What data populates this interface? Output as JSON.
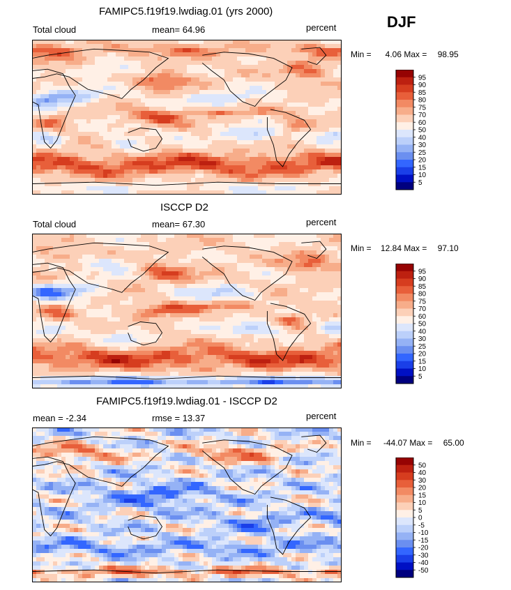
{
  "season": "DJF",
  "colors": {
    "mean_palette": [
      "#00007f",
      "#0010c4",
      "#1a3fe8",
      "#3366ff",
      "#6b8ff0",
      "#95b2f5",
      "#bcd0fa",
      "#dce6fc",
      "#fff0e6",
      "#fcd0b8",
      "#f7ad8a",
      "#f28a63",
      "#e85f3a",
      "#d63d1f",
      "#bd2010",
      "#960303"
    ],
    "diff_palette": [
      "#00007f",
      "#0010c4",
      "#1a3fe8",
      "#3366ff",
      "#6b8ff0",
      "#95b2f5",
      "#bcd0fa",
      "#dce6fc",
      "#fff0e6",
      "#fcd0b8",
      "#f7ad8a",
      "#f28a63",
      "#e85f3a",
      "#d63d1f",
      "#bd2010",
      "#960303"
    ],
    "coast": "#000000"
  },
  "chart_data": [
    {
      "type": "heatmap",
      "title": "FAMIPC5.f19f19.lwdiag.01 (yrs 2000)",
      "left_label": "Total cloud",
      "stat_label": "mean=  64.96",
      "units": "percent",
      "min_label": "Min =",
      "min_value": "4.06",
      "max_label": "Max =",
      "max_value": "98.95",
      "mean": 64.96,
      "min": 4.06,
      "max": 98.95,
      "levels": [
        "5",
        "10",
        "15",
        "20",
        "25",
        "30",
        "40",
        "50",
        "60",
        "70",
        "75",
        "80",
        "85",
        "90",
        "95"
      ]
    },
    {
      "type": "heatmap",
      "title": "ISCCP D2",
      "left_label": "Total cloud",
      "stat_label": "mean=  67.30",
      "units": "percent",
      "min_label": "Min =",
      "min_value": "12.84",
      "max_label": "Max =",
      "max_value": "97.10",
      "mean": 67.3,
      "min": 12.84,
      "max": 97.1,
      "levels": [
        "5",
        "10",
        "15",
        "20",
        "25",
        "30",
        "40",
        "50",
        "60",
        "70",
        "75",
        "80",
        "85",
        "90",
        "95"
      ]
    },
    {
      "type": "heatmap",
      "title": "FAMIPC5.f19f19.lwdiag.01 - ISCCP D2",
      "left_label": "mean =   -2.34",
      "stat_label": "rmse =   13.37",
      "units": "percent",
      "min_label": "Min =",
      "min_value": "-44.07",
      "max_label": "Max =",
      "max_value": "65.00",
      "mean": -2.34,
      "rmse": 13.37,
      "min": -44.07,
      "max": 65.0,
      "levels": [
        "-50",
        "-40",
        "-30",
        "-20",
        "-15",
        "-10",
        "-5",
        "0",
        "5",
        "10",
        "15",
        "20",
        "30",
        "40",
        "50"
      ]
    }
  ]
}
